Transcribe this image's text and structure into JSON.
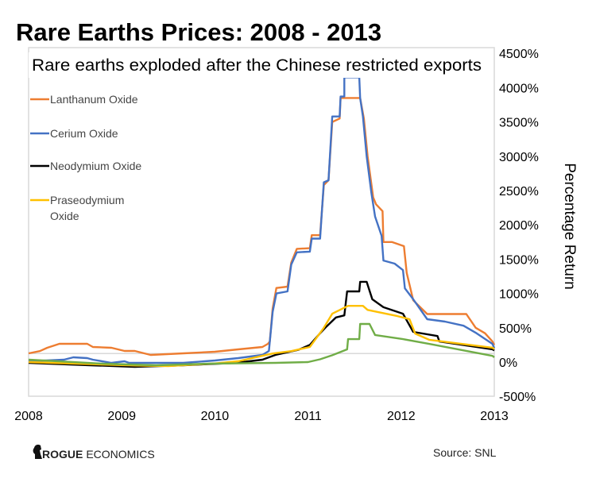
{
  "chart_data": {
    "type": "line",
    "title": "Rare Earths Prices: 2008 - 2013",
    "subtitle": "Rare earths exploded after the Chinese restricted exports",
    "ylabel": "Percentage Return",
    "xlabel": "",
    "xlim": [
      2008,
      2013
    ],
    "ylim": [
      -500,
      4500
    ],
    "x_ticks": [
      2008,
      2009,
      2010,
      2011,
      2012,
      2013
    ],
    "x_tick_labels": [
      "2008",
      "2009",
      "2010",
      "2011",
      "2012",
      "2013"
    ],
    "y_ticks": [
      4500,
      4000,
      3500,
      3000,
      2500,
      2000,
      1500,
      1000,
      500,
      0,
      -500
    ],
    "y_tick_labels": [
      "4500%",
      "4000%",
      "3500%",
      "3000%",
      "2500%",
      "2000%",
      "1500%",
      "1000%",
      "500%",
      "0%",
      "-500%"
    ],
    "reference_line": 125,
    "legend_position": "top-left",
    "series": [
      {
        "name": "Lanthanum Oxide",
        "legend_lines": [
          "Lanthanum Oxide"
        ],
        "color": "#ED7D31",
        "in_legend": true,
        "points": [
          [
            2008.0,
            127
          ],
          [
            2008.12,
            160
          ],
          [
            2008.2,
            208
          ],
          [
            2008.33,
            266
          ],
          [
            2008.63,
            266
          ],
          [
            2008.69,
            220
          ],
          [
            2008.89,
            208
          ],
          [
            2009.03,
            162
          ],
          [
            2009.14,
            162
          ],
          [
            2009.31,
            104
          ],
          [
            2009.66,
            127
          ],
          [
            2010.0,
            150
          ],
          [
            2010.25,
            185
          ],
          [
            2010.51,
            220
          ],
          [
            2010.57,
            266
          ],
          [
            2010.59,
            300
          ],
          [
            2010.62,
            780
          ],
          [
            2010.66,
            1080
          ],
          [
            2010.78,
            1100
          ],
          [
            2010.82,
            1450
          ],
          [
            2010.88,
            1650
          ],
          [
            2011.02,
            1660
          ],
          [
            2011.04,
            1850
          ],
          [
            2011.13,
            1850
          ],
          [
            2011.17,
            2580
          ],
          [
            2011.22,
            2650
          ],
          [
            2011.26,
            3500
          ],
          [
            2011.34,
            3550
          ],
          [
            2011.35,
            3850
          ],
          [
            2011.56,
            3850
          ],
          [
            2011.6,
            3550
          ],
          [
            2011.64,
            3000
          ],
          [
            2011.7,
            2400
          ],
          [
            2011.73,
            2300
          ],
          [
            2011.8,
            2200
          ],
          [
            2011.81,
            1750
          ],
          [
            2011.9,
            1750
          ],
          [
            2012.03,
            1690
          ],
          [
            2012.06,
            1300
          ],
          [
            2012.13,
            900
          ],
          [
            2012.28,
            700
          ],
          [
            2012.7,
            700
          ],
          [
            2012.8,
            500
          ],
          [
            2012.9,
            420
          ],
          [
            2012.98,
            300
          ],
          [
            2013.0,
            250
          ]
        ]
      },
      {
        "name": "Cerium Oxide",
        "legend_lines": [
          "Cerium Oxide"
        ],
        "color": "#4472C4",
        "in_legend": true,
        "points": [
          [
            2008.0,
            12
          ],
          [
            2008.38,
            35
          ],
          [
            2008.48,
            70
          ],
          [
            2008.63,
            58
          ],
          [
            2008.69,
            35
          ],
          [
            2008.89,
            -12
          ],
          [
            2009.03,
            12
          ],
          [
            2009.08,
            -12
          ],
          [
            2009.66,
            -12
          ],
          [
            2010.0,
            23
          ],
          [
            2010.25,
            58
          ],
          [
            2010.51,
            104
          ],
          [
            2010.58,
            162
          ],
          [
            2010.62,
            730
          ],
          [
            2010.66,
            1000
          ],
          [
            2010.78,
            1030
          ],
          [
            2010.82,
            1420
          ],
          [
            2010.88,
            1600
          ],
          [
            2011.02,
            1610
          ],
          [
            2011.04,
            1800
          ],
          [
            2011.13,
            1800
          ],
          [
            2011.17,
            2620
          ],
          [
            2011.22,
            2650
          ],
          [
            2011.26,
            3580
          ],
          [
            2011.34,
            3580
          ],
          [
            2011.35,
            3870
          ],
          [
            2011.39,
            3870
          ],
          [
            2011.39,
            4150
          ],
          [
            2011.55,
            4150
          ],
          [
            2011.56,
            3850
          ],
          [
            2011.59,
            3580
          ],
          [
            2011.63,
            3000
          ],
          [
            2011.68,
            2470
          ],
          [
            2011.72,
            2120
          ],
          [
            2011.79,
            1840
          ],
          [
            2011.81,
            1480
          ],
          [
            2011.93,
            1435
          ],
          [
            2012.02,
            1340
          ],
          [
            2012.04,
            1075
          ],
          [
            2012.13,
            915
          ],
          [
            2012.28,
            625
          ],
          [
            2012.47,
            590
          ],
          [
            2012.67,
            530
          ],
          [
            2012.81,
            420
          ],
          [
            2012.98,
            265
          ],
          [
            2013.0,
            200
          ]
        ]
      },
      {
        "name": "Neodymium Oxide",
        "legend_lines": [
          "Neodymium Oxide"
        ],
        "color": "#000000",
        "in_legend": true,
        "points": [
          [
            2008.0,
            -12
          ],
          [
            2008.66,
            -46
          ],
          [
            2009.14,
            -70
          ],
          [
            2009.66,
            -46
          ],
          [
            2010.23,
            -12
          ],
          [
            2010.51,
            35
          ],
          [
            2010.65,
            104
          ],
          [
            2010.9,
            180
          ],
          [
            2011.02,
            250
          ],
          [
            2011.13,
            420
          ],
          [
            2011.2,
            520
          ],
          [
            2011.3,
            650
          ],
          [
            2011.39,
            680
          ],
          [
            2011.42,
            1030
          ],
          [
            2011.55,
            1030
          ],
          [
            2011.56,
            1170
          ],
          [
            2011.63,
            1170
          ],
          [
            2011.69,
            915
          ],
          [
            2011.81,
            800
          ],
          [
            2012.02,
            705
          ],
          [
            2012.13,
            440
          ],
          [
            2012.39,
            380
          ],
          [
            2012.41,
            300
          ],
          [
            2012.98,
            185
          ],
          [
            2013.0,
            170
          ]
        ]
      },
      {
        "name": "Praseodymium Oxide",
        "legend_lines": [
          "Praseodymium",
          "Oxide"
        ],
        "color": "#FFC000",
        "in_legend": true,
        "points": [
          [
            2008.0,
            0
          ],
          [
            2008.66,
            -30
          ],
          [
            2009.14,
            -50
          ],
          [
            2009.5,
            -58
          ],
          [
            2010.0,
            -20
          ],
          [
            2010.25,
            12
          ],
          [
            2010.62,
            125
          ],
          [
            2010.82,
            160
          ],
          [
            2011.02,
            220
          ],
          [
            2011.17,
            500
          ],
          [
            2011.26,
            705
          ],
          [
            2011.43,
            820
          ],
          [
            2011.59,
            820
          ],
          [
            2011.64,
            760
          ],
          [
            2011.96,
            670
          ],
          [
            2012.09,
            625
          ],
          [
            2012.15,
            415
          ],
          [
            2012.3,
            325
          ],
          [
            2012.98,
            210
          ],
          [
            2013.0,
            190
          ]
        ]
      },
      {
        "name": "",
        "legend_lines": [],
        "color": "#70AD47",
        "in_legend": false,
        "points": [
          [
            2008.0,
            35
          ],
          [
            2008.8,
            -23
          ],
          [
            2009.37,
            -46
          ],
          [
            2009.93,
            -23
          ],
          [
            2010.65,
            -12
          ],
          [
            2011.0,
            0
          ],
          [
            2011.13,
            40
          ],
          [
            2011.26,
            100
          ],
          [
            2011.42,
            185
          ],
          [
            2011.43,
            335
          ],
          [
            2011.55,
            335
          ],
          [
            2011.56,
            555
          ],
          [
            2011.66,
            555
          ],
          [
            2011.72,
            395
          ],
          [
            2012.02,
            335
          ],
          [
            2012.3,
            265
          ],
          [
            2012.98,
            90
          ],
          [
            2013.0,
            70
          ]
        ]
      }
    ]
  },
  "footer": {
    "brand_bold": "ROGUE",
    "brand_rest": "ECONOMICS",
    "source": "Source: SNL"
  }
}
